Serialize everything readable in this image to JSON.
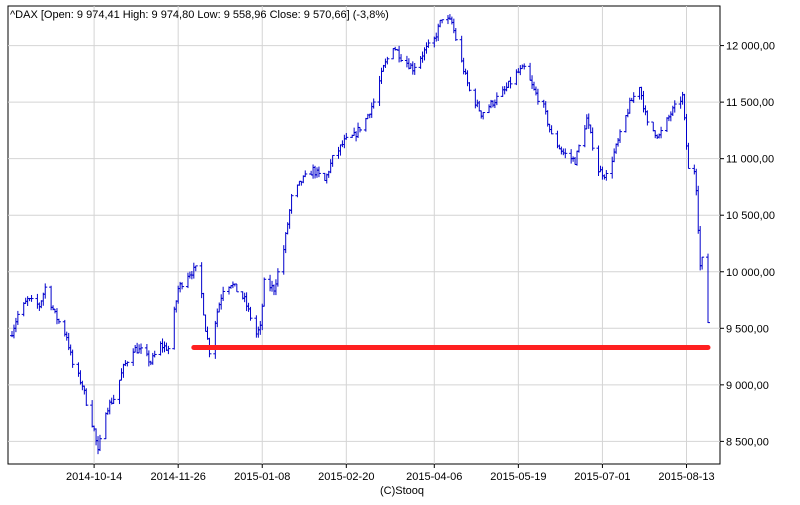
{
  "chart_data": {
    "type": "ohlc",
    "title": "^DAX [Open: 9 974,41   High: 9 974,80   Low: 9 558,96   Close: 9 570,66] (-3,8%)",
    "credit": "(C)Stooq",
    "grid": true,
    "y_axis": {
      "position": "right",
      "range": [
        8300,
        12350
      ],
      "ticks": [
        8500,
        9000,
        9500,
        10000,
        10500,
        11000,
        11500,
        12000
      ],
      "tick_labels": [
        "8 500,00",
        "9 000,00",
        "9 500,00",
        "10 000,00",
        "10 500,00",
        "11 000,00",
        "11 500,00",
        "12 000,00"
      ]
    },
    "x_axis": {
      "range": [
        "2014-09-02",
        "2015-08-24"
      ],
      "tick_dates": [
        "2014-10-14",
        "2014-11-26",
        "2015-01-08",
        "2015-02-20",
        "2015-04-06",
        "2015-05-19",
        "2015-07-01",
        "2015-08-13"
      ],
      "tick_labels": [
        "2014-10-14",
        "2014-11-26",
        "2015-01-08",
        "2015-02-20",
        "2015-04-06",
        "2015-05-19",
        "2015-07-01",
        "2015-08-13"
      ]
    },
    "series": [
      {
        "color": "#0000cc",
        "dates": [
          "2014-09-02",
          "2014-09-05",
          "2014-09-10",
          "2014-09-16",
          "2014-09-19",
          "2014-09-24",
          "2014-09-30",
          "2014-10-03",
          "2014-10-08",
          "2014-10-10",
          "2014-10-14",
          "2014-10-16",
          "2014-10-20",
          "2014-10-24",
          "2014-10-29",
          "2014-11-03",
          "2014-11-07",
          "2014-11-12",
          "2014-11-17",
          "2014-11-21",
          "2014-11-26",
          "2014-12-01",
          "2014-12-05",
          "2014-12-08",
          "2014-12-10",
          "2014-12-12",
          "2014-12-16",
          "2014-12-19",
          "2014-12-23",
          "2014-12-30",
          "2015-01-05",
          "2015-01-07",
          "2015-01-09",
          "2015-01-14",
          "2015-01-19",
          "2015-01-23",
          "2015-01-28",
          "2015-02-03",
          "2015-02-09",
          "2015-02-13",
          "2015-02-19",
          "2015-02-24",
          "2015-03-02",
          "2015-03-06",
          "2015-03-11",
          "2015-03-16",
          "2015-03-20",
          "2015-03-26",
          "2015-04-01",
          "2015-04-06",
          "2015-04-10",
          "2015-04-15",
          "2015-04-20",
          "2015-04-24",
          "2015-04-30",
          "2015-05-06",
          "2015-05-12",
          "2015-05-18",
          "2015-05-22",
          "2015-05-27",
          "2015-06-01",
          "2015-06-05",
          "2015-06-11",
          "2015-06-17",
          "2015-06-23",
          "2015-06-29",
          "2015-07-03",
          "2015-07-09",
          "2015-07-15",
          "2015-07-20",
          "2015-07-24",
          "2015-07-30",
          "2015-08-05",
          "2015-08-11",
          "2015-08-14",
          "2015-08-17",
          "2015-08-18",
          "2015-08-19",
          "2015-08-20",
          "2015-08-21",
          "2015-08-24"
        ],
        "values": [
          9470,
          9620,
          9750,
          9700,
          9860,
          9620,
          9430,
          9180,
          9000,
          8850,
          8600,
          8400,
          8780,
          8880,
          9150,
          9320,
          9300,
          9200,
          9350,
          9320,
          9850,
          9980,
          10020,
          9800,
          9500,
          9300,
          9650,
          9850,
          9900,
          9750,
          9450,
          9500,
          9900,
          9850,
          10200,
          10650,
          10800,
          10900,
          10800,
          11000,
          11150,
          11200,
          11350,
          11500,
          11800,
          12000,
          11900,
          11800,
          11950,
          12050,
          12250,
          12200,
          11850,
          11600,
          11400,
          11500,
          11600,
          11750,
          11800,
          11600,
          11450,
          11200,
          11050,
          10980,
          11350,
          10900,
          10850,
          11150,
          11480,
          11650,
          11300,
          11200,
          11400,
          11550,
          10900,
          10900,
          10750,
          10400,
          10050,
          10100,
          9560
        ]
      }
    ],
    "annotations": [
      {
        "type": "horizontal_line",
        "value": 9330,
        "from": "2014-12-04",
        "to": "2015-08-24",
        "color": "#ff2020"
      }
    ]
  }
}
